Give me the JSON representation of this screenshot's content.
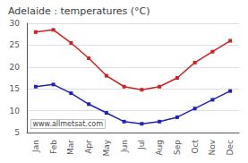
{
  "chart_data": {
    "type": "line",
    "title": "Adelaide : temperatures (°C)",
    "categories": [
      "Jan",
      "Feb",
      "Mar",
      "Apr",
      "May",
      "Jun",
      "Jul",
      "Aug",
      "Sep",
      "Oct",
      "Nov",
      "Dec"
    ],
    "series": [
      {
        "color": "#cc2222",
        "values": [
          28.0,
          28.5,
          25.5,
          22.0,
          18.0,
          15.5,
          14.8,
          15.5,
          17.5,
          21.0,
          23.5,
          26.0
        ]
      },
      {
        "color": "#2222bb",
        "values": [
          15.5,
          16.0,
          14.0,
          11.5,
          9.5,
          7.5,
          7.0,
          7.5,
          8.5,
          10.5,
          12.5,
          14.5
        ]
      }
    ],
    "marker": "square",
    "ylim": [
      5,
      30
    ],
    "yticks": [
      5,
      10,
      15,
      20,
      25,
      30
    ],
    "grid": true,
    "annotation": "www.allmetsat.com"
  }
}
